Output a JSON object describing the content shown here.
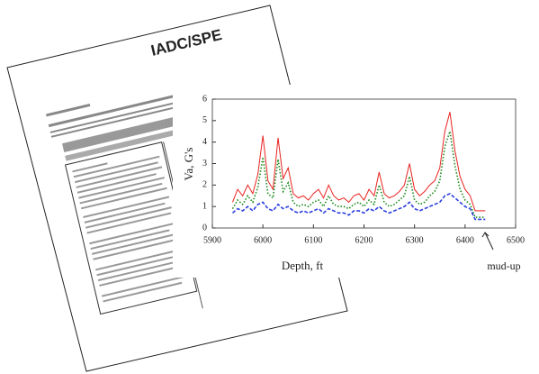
{
  "document": {
    "title": "IADC/SPE"
  },
  "chart_data": {
    "type": "line",
    "y_label": "Va, G's",
    "x_label": "Depth, ft",
    "annotation": "mud-up",
    "xlim": [
      5900,
      6500
    ],
    "xticks": [
      5900,
      6000,
      6100,
      6200,
      6300,
      6400,
      6500
    ],
    "ylim": [
      0,
      6
    ],
    "yticks": [
      0,
      1,
      2,
      3,
      4,
      5,
      6
    ],
    "x": [
      5940,
      5950,
      5960,
      5970,
      5980,
      5990,
      6000,
      6010,
      6020,
      6030,
      6040,
      6050,
      6060,
      6070,
      6080,
      6090,
      6100,
      6110,
      6120,
      6130,
      6140,
      6150,
      6160,
      6170,
      6180,
      6190,
      6200,
      6210,
      6220,
      6230,
      6240,
      6250,
      6260,
      6270,
      6280,
      6290,
      6300,
      6310,
      6320,
      6330,
      6340,
      6350,
      6360,
      6370,
      6380,
      6390,
      6400,
      6410,
      6420,
      6430,
      6440
    ],
    "series": [
      {
        "color": "#e8231f",
        "line_style": "solid",
        "values": [
          1.2,
          1.8,
          1.5,
          2.0,
          1.6,
          2.5,
          4.3,
          2.2,
          1.8,
          4.2,
          2.3,
          2.8,
          1.6,
          1.4,
          1.5,
          1.3,
          1.6,
          1.8,
          1.4,
          2.0,
          1.5,
          1.3,
          1.4,
          1.2,
          1.5,
          1.6,
          1.3,
          1.8,
          1.5,
          2.6,
          1.6,
          1.4,
          1.5,
          1.7,
          2.0,
          3.0,
          1.8,
          1.5,
          1.7,
          2.0,
          2.2,
          2.8,
          4.5,
          5.4,
          3.6,
          2.4,
          1.8,
          1.5,
          0.8,
          0.8,
          0.8
        ]
      },
      {
        "color": "#1a8a1a",
        "line_style": "dotted",
        "values": [
          0.9,
          1.3,
          1.1,
          1.5,
          1.2,
          1.9,
          3.3,
          1.6,
          1.4,
          3.2,
          1.7,
          2.1,
          1.2,
          1.0,
          1.1,
          1.0,
          1.2,
          1.3,
          1.0,
          1.5,
          1.1,
          1.0,
          1.0,
          0.9,
          1.1,
          1.2,
          1.0,
          1.3,
          1.1,
          2.0,
          1.2,
          1.0,
          1.1,
          1.3,
          1.5,
          2.4,
          1.3,
          1.1,
          1.2,
          1.5,
          1.7,
          2.2,
          3.8,
          4.5,
          2.9,
          1.8,
          1.3,
          1.1,
          0.5,
          0.5,
          0.5
        ]
      },
      {
        "color": "#2c3fe0",
        "line_style": "dashed",
        "values": [
          0.7,
          0.9,
          0.8,
          1.0,
          0.8,
          1.1,
          1.2,
          0.9,
          0.8,
          1.1,
          0.9,
          1.0,
          0.8,
          0.7,
          0.8,
          0.7,
          0.8,
          0.9,
          0.7,
          0.9,
          0.8,
          0.7,
          0.7,
          0.6,
          0.8,
          0.8,
          0.7,
          0.9,
          0.8,
          1.0,
          0.8,
          0.7,
          0.8,
          0.9,
          1.0,
          1.2,
          0.9,
          0.8,
          0.9,
          1.0,
          1.1,
          1.2,
          1.5,
          1.6,
          1.4,
          1.2,
          1.0,
          0.9,
          0.4,
          0.4,
          0.4
        ]
      }
    ],
    "grid": false
  }
}
